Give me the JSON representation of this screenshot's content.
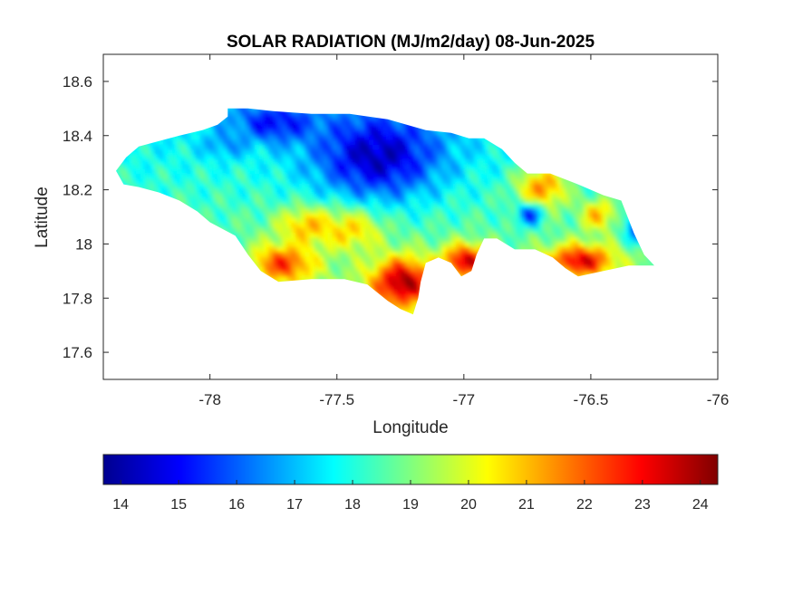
{
  "chart_data": {
    "type": "heatmap",
    "title": "SOLAR RADIATION (MJ/m2/day) 08-Jun-2025",
    "xlabel": "Longitude",
    "ylabel": "Latitude",
    "xlim": [
      -78.42,
      -76.0
    ],
    "ylim": [
      17.5,
      18.7
    ],
    "x_ticks": [
      -78,
      -77.5,
      -77,
      -76.5,
      -76
    ],
    "x_tick_labels": [
      "-78",
      "-77.5",
      "-77",
      "-76.5",
      "-76"
    ],
    "y_ticks": [
      17.6,
      17.8,
      18.0,
      18.2,
      18.4,
      18.6
    ],
    "y_tick_labels": [
      "17.6",
      "17.8",
      "18",
      "18.2",
      "18.4",
      "18.6"
    ],
    "grid": false,
    "colormap": "jet",
    "colorbar": {
      "orientation": "horizontal",
      "placement": "bottom",
      "range": [
        13.7,
        24.3
      ],
      "ticks": [
        14,
        15,
        16,
        17,
        18,
        19,
        20,
        21,
        22,
        23,
        24
      ],
      "tick_labels": [
        "14",
        "15",
        "16",
        "17",
        "18",
        "19",
        "20",
        "21",
        "22",
        "23",
        "24"
      ]
    },
    "region_outline": [
      [
        -78.37,
        18.27
      ],
      [
        -78.33,
        18.32
      ],
      [
        -78.28,
        18.36
      ],
      [
        -78.2,
        18.38
      ],
      [
        -78.12,
        18.4
      ],
      [
        -78.03,
        18.42
      ],
      [
        -77.97,
        18.44
      ],
      [
        -77.93,
        18.47
      ],
      [
        -77.93,
        18.5
      ],
      [
        -77.85,
        18.5
      ],
      [
        -77.75,
        18.49
      ],
      [
        -77.6,
        18.48
      ],
      [
        -77.45,
        18.48
      ],
      [
        -77.3,
        18.46
      ],
      [
        -77.15,
        18.42
      ],
      [
        -77.05,
        18.41
      ],
      [
        -76.98,
        18.39
      ],
      [
        -76.92,
        18.39
      ],
      [
        -76.85,
        18.35
      ],
      [
        -76.8,
        18.3
      ],
      [
        -76.75,
        18.26
      ],
      [
        -76.66,
        18.26
      ],
      [
        -76.55,
        18.22
      ],
      [
        -76.45,
        18.18
      ],
      [
        -76.38,
        18.16
      ],
      [
        -76.33,
        18.04
      ],
      [
        -76.29,
        17.96
      ],
      [
        -76.25,
        17.92
      ],
      [
        -76.35,
        17.92
      ],
      [
        -76.45,
        17.9
      ],
      [
        -76.55,
        17.88
      ],
      [
        -76.6,
        17.91
      ],
      [
        -76.65,
        17.95
      ],
      [
        -76.72,
        17.98
      ],
      [
        -76.8,
        17.98
      ],
      [
        -76.87,
        18.02
      ],
      [
        -76.92,
        18.02
      ],
      [
        -76.95,
        17.96
      ],
      [
        -76.97,
        17.9
      ],
      [
        -77.01,
        17.88
      ],
      [
        -77.05,
        17.93
      ],
      [
        -77.1,
        17.95
      ],
      [
        -77.15,
        17.93
      ],
      [
        -77.17,
        17.86
      ],
      [
        -77.18,
        17.8
      ],
      [
        -77.2,
        17.74
      ],
      [
        -77.25,
        17.76
      ],
      [
        -77.3,
        17.79
      ],
      [
        -77.38,
        17.85
      ],
      [
        -77.47,
        17.87
      ],
      [
        -77.6,
        17.87
      ],
      [
        -77.73,
        17.86
      ],
      [
        -77.8,
        17.9
      ],
      [
        -77.85,
        17.96
      ],
      [
        -77.9,
        18.03
      ],
      [
        -78.0,
        18.08
      ],
      [
        -78.05,
        18.12
      ],
      [
        -78.12,
        18.16
      ],
      [
        -78.2,
        18.19
      ],
      [
        -78.28,
        18.21
      ],
      [
        -78.34,
        18.22
      ]
    ]
  }
}
